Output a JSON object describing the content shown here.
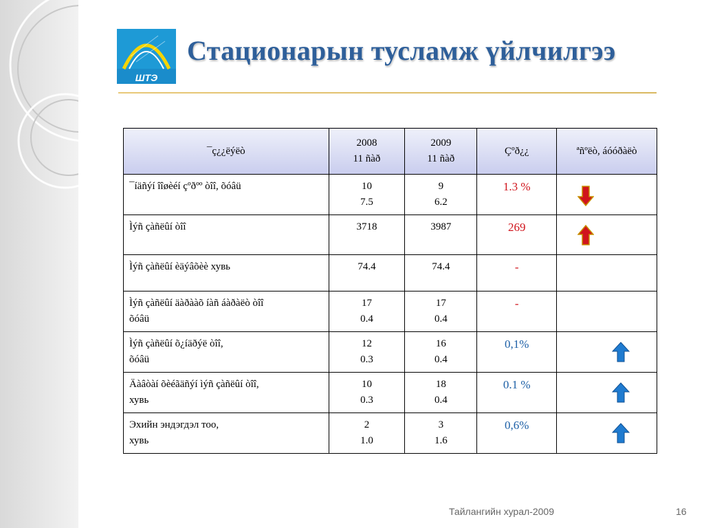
{
  "slide": {
    "title": "Стационарын тусламж үйлчилгээ",
    "logo_text": "ШТЭ",
    "footer": "Тайлангийн хурал-2009",
    "page_number": "16",
    "colors": {
      "title": "#2e5f9a",
      "decrease": "#d0141c",
      "increase": "#1c5fa6",
      "header_bg": "#c9cdee"
    }
  },
  "table": {
    "headers": {
      "indicator": "¯ç¿¿ëýëò",
      "y2008_line1": "2008",
      "y2008_line2": "11 ñàð",
      "y2009_line1": "2009",
      "y2009_line2": "11 ñàð",
      "difference": "Çºð¿¿",
      "trend": "ªñºëò, áóóðàëò"
    },
    "rows": [
      {
        "label_line1": "¯íäñýí îîøèéí çºðºº òîî, õóâü",
        "label_line2": "",
        "y2008_line1": "10",
        "y2008_line2": "7.5",
        "y2009_line1": "9",
        "y2009_line2": "6.2",
        "diff": "1.3 %",
        "trend": "down-arrow-icon"
      },
      {
        "label_line1": "Ìýñ çàñëûí òîî",
        "label_line2": "",
        "y2008_line1": "3718",
        "y2008_line2": "",
        "y2009_line1": "3987",
        "y2009_line2": "",
        "diff": "269",
        "trend": "up-arrow-icon"
      },
      {
        "label_line1": "Ìýñ çàñëûí èäýâõèè хувь",
        "label_line2": "",
        "y2008_line1": "74.4",
        "y2008_line2": "",
        "y2009_line1": "74.4",
        "y2009_line2": "",
        "diff": "-",
        "trend": ""
      },
      {
        "label_line1": "Ìýñ çàñëûí äàðààõ íàñ áàðàëò òîî",
        "label_line2": "õóâü",
        "y2008_line1": "17",
        "y2008_line2": "0.4",
        "y2009_line1": "17",
        "y2009_line2": "0.4",
        "diff": "-",
        "trend": ""
      },
      {
        "label_line1": "Ìýñ çàñëûí õ¿íäðýë òîî,",
        "label_line2": "õóâü",
        "y2008_line1": "12",
        "y2008_line2": "0.3",
        "y2009_line1": "16",
        "y2009_line2": "0.4",
        "diff": "0,1%",
        "trend": "up-arrow-icon"
      },
      {
        "label_line1": "Äàâòàí õèéãäñýí ìýñ çàñëûí òîî,",
        "label_line2": "хувь",
        "y2008_line1": "10",
        "y2008_line2": "0.3",
        "y2009_line1": "18",
        "y2009_line2": "0.4",
        "diff": "0.1 %",
        "trend": "up-arrow-icon"
      },
      {
        "label_line1": "Эхийн эндэгдэл тоо,",
        "label_line2": "хувь",
        "y2008_line1": "2",
        "y2008_line2": "1.0",
        "y2009_line1": "3",
        "y2009_line2": "1.6",
        "diff": "0,6%",
        "trend": "up-arrow-icon"
      }
    ]
  }
}
